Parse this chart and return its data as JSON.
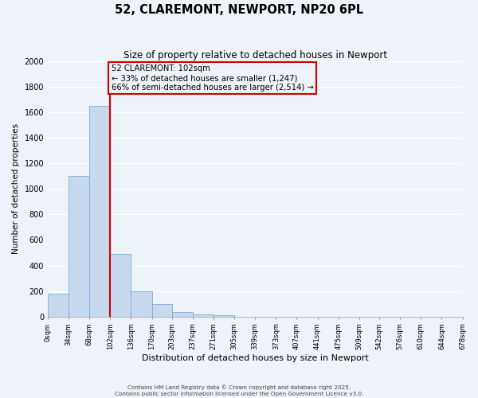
{
  "title": "52, CLAREMONT, NEWPORT, NP20 6PL",
  "subtitle": "Size of property relative to detached houses in Newport",
  "xlabel": "Distribution of detached houses by size in Newport",
  "ylabel": "Number of detached properties",
  "bin_edges": [
    0,
    34,
    68,
    102,
    136,
    170,
    203,
    237,
    271,
    305,
    339,
    373,
    407,
    441,
    475,
    509,
    542,
    576,
    610,
    644,
    678
  ],
  "bar_heights": [
    180,
    1100,
    1650,
    490,
    200,
    100,
    35,
    20,
    12,
    0,
    0,
    0,
    0,
    0,
    0,
    0,
    0,
    0,
    0,
    0
  ],
  "bar_color": "#c8d9ed",
  "bar_edgecolor": "#7aaed4",
  "bar_linewidth": 0.6,
  "vline_x": 102,
  "vline_color": "#cc0000",
  "annotation_title": "52 CLAREMONT: 102sqm",
  "annotation_line1": "← 33% of detached houses are smaller (1,247)",
  "annotation_line2": "66% of semi-detached houses are larger (2,514) →",
  "annotation_box_color": "#cc0000",
  "ylim": [
    0,
    2000
  ],
  "yticks": [
    0,
    200,
    400,
    600,
    800,
    1000,
    1200,
    1400,
    1600,
    1800,
    2000
  ],
  "tick_labels": [
    "0sqm",
    "34sqm",
    "68sqm",
    "102sqm",
    "136sqm",
    "170sqm",
    "203sqm",
    "237sqm",
    "271sqm",
    "305sqm",
    "339sqm",
    "373sqm",
    "407sqm",
    "441sqm",
    "475sqm",
    "509sqm",
    "542sqm",
    "576sqm",
    "610sqm",
    "644sqm",
    "678sqm"
  ],
  "bg_color": "#edf3f8",
  "grid_color": "#ffffff",
  "footer_line1": "Contains HM Land Registry data © Crown copyright and database right 2025.",
  "footer_line2": "Contains public sector information licensed under the Open Government Licence v3.0."
}
